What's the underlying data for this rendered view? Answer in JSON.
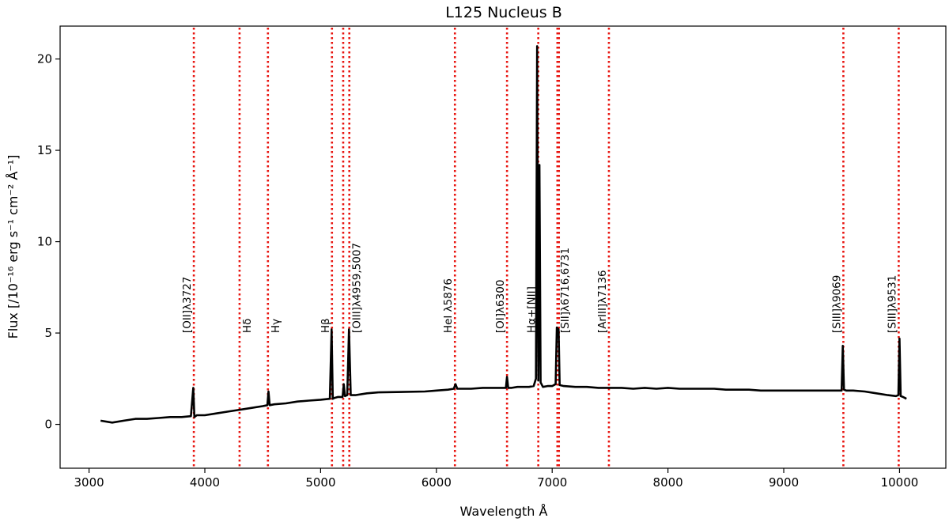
{
  "chart_data": {
    "type": "line",
    "title": "L125 Nucleus B",
    "xlabel": "Wavelength Å",
    "ylabel": "Flux  [/10⁻¹⁶ erg s⁻¹ cm⁻² Å⁻¹]",
    "xlim": [
      2750,
      10400
    ],
    "ylim": [
      -2.4,
      21.8
    ],
    "xticks": [
      3000,
      4000,
      5000,
      6000,
      7000,
      8000,
      9000,
      10000
    ],
    "yticks": [
      0,
      5,
      10,
      15,
      20
    ],
    "grid": false,
    "line_color": "#000000",
    "marker_color": "#e8140f",
    "series": [
      {
        "x": [
          3100,
          3200,
          3300,
          3400,
          3500,
          3600,
          3700,
          3800,
          3880,
          3900,
          3910,
          3930,
          4000,
          4100,
          4200,
          4300,
          4400,
          4500,
          4540,
          4550,
          4560,
          4600,
          4700,
          4800,
          4900,
          5000,
          5080,
          5095,
          5105,
          5120,
          5150,
          5190,
          5200,
          5210,
          5230,
          5245,
          5260,
          5300,
          5400,
          5500,
          5600,
          5700,
          5800,
          5900,
          6000,
          6100,
          6150,
          6165,
          6180,
          6200,
          6300,
          6400,
          6500,
          6600,
          6610,
          6620,
          6650,
          6700,
          6800,
          6840,
          6860,
          6870,
          6880,
          6890,
          6900,
          6920,
          6960,
          7000,
          7030,
          7040,
          7055,
          7065,
          7100,
          7200,
          7300,
          7400,
          7500,
          7600,
          7700,
          7800,
          7900,
          8000,
          8100,
          8200,
          8300,
          8400,
          8500,
          8600,
          8700,
          8800,
          8900,
          9000,
          9100,
          9200,
          9300,
          9400,
          9480,
          9500,
          9510,
          9520,
          9540,
          9600,
          9700,
          9800,
          9900,
          9970,
          9990,
          10000,
          10010,
          10030,
          10060
        ],
        "y": [
          0.2,
          0.1,
          0.2,
          0.3,
          0.3,
          0.35,
          0.4,
          0.4,
          0.45,
          2.0,
          0.4,
          0.5,
          0.5,
          0.6,
          0.7,
          0.8,
          0.9,
          1.0,
          1.05,
          1.8,
          1.05,
          1.1,
          1.15,
          1.25,
          1.3,
          1.35,
          1.4,
          5.2,
          1.4,
          1.45,
          1.5,
          1.5,
          2.2,
          1.55,
          1.6,
          5.2,
          1.6,
          1.6,
          1.7,
          1.75,
          null,
          null,
          null,
          1.8,
          1.85,
          1.9,
          1.95,
          2.2,
          1.95,
          1.95,
          1.95,
          2.0,
          2.0,
          2.0,
          2.6,
          2.0,
          2.0,
          2.05,
          2.05,
          2.1,
          2.5,
          20.7,
          2.4,
          14.2,
          2.3,
          2.05,
          2.1,
          2.1,
          2.2,
          5.3,
          5.2,
          2.15,
          2.1,
          2.05,
          2.05,
          2.0,
          2.0,
          2.0,
          1.95,
          2.0,
          1.95,
          2.0,
          1.95,
          1.95,
          1.95,
          1.95,
          1.9,
          1.9,
          1.9,
          1.85,
          1.85,
          1.85,
          1.85,
          1.85,
          1.85,
          1.85,
          1.85,
          1.85,
          4.3,
          1.9,
          1.85,
          1.85,
          1.8,
          1.7,
          1.6,
          1.55,
          1.6,
          4.7,
          1.55,
          1.5,
          1.4
        ]
      }
    ],
    "lines": [
      {
        "label": "[OII]λ3727",
        "x": 3905,
        "label_pos": "left"
      },
      {
        "label": "Hδ",
        "x": 4300,
        "label_pos": "right"
      },
      {
        "label": "Hγ",
        "x": 4545,
        "label_pos": "right"
      },
      {
        "label": "Hβ",
        "x": 5098,
        "label_pos": "left"
      },
      {
        "label": "",
        "x": 5195
      },
      {
        "label": "[OIII]λ4959,5007",
        "x": 5248,
        "label_pos": "right"
      },
      {
        "label": "HeI λ5876",
        "x": 6160,
        "label_pos": "left"
      },
      {
        "label": "[OI]λ6300",
        "x": 6610,
        "label_pos": "left"
      },
      {
        "label": "Hα+[NII]",
        "x": 6880,
        "label_pos": "left"
      },
      {
        "label": "[SII]λ6716,6731",
        "x": 7045,
        "label_pos": "right"
      },
      {
        "label": "",
        "x": 7058
      },
      {
        "label": "[ArIII]λ7136",
        "x": 7490,
        "label_pos": "left"
      },
      {
        "label": "[SIII]λ9069",
        "x": 9515,
        "label_pos": "left"
      },
      {
        "label": "[SIII]λ9531",
        "x": 9993,
        "label_pos": "left"
      }
    ]
  }
}
